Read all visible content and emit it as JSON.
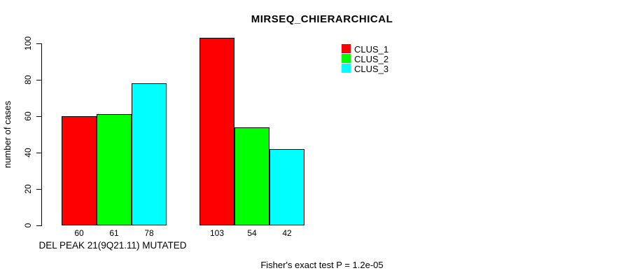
{
  "chart_data": {
    "type": "bar",
    "title": "MIRSEQ_CHIERARCHICAL",
    "ylabel": "number of cases",
    "xlabel": "DEL PEAK 21(9Q21.11) MUTATED",
    "annotation": "Fisher's exact test P = 1.2e-05",
    "ylim": [
      0,
      104
    ],
    "yticks": [
      0,
      20,
      40,
      60,
      80,
      100
    ],
    "grid": false,
    "legend_position": "top-right",
    "categories": [
      "DEL PEAK 21(9Q21.11) MUTATED",
      ""
    ],
    "series": [
      {
        "name": "CLUS_1",
        "color": "#FF0000",
        "values": [
          60,
          103
        ]
      },
      {
        "name": "CLUS_2",
        "color": "#00FF00",
        "values": [
          61,
          54
        ]
      },
      {
        "name": "CLUS_3",
        "color": "#00FFFF",
        "values": [
          78,
          42
        ]
      }
    ],
    "bar_labels": [
      [
        "60",
        "61",
        "78"
      ],
      [
        "103",
        "54",
        "42"
      ]
    ],
    "colors": {
      "background": "#FFFFFF",
      "axis": "#000000",
      "text": "#000000"
    }
  }
}
